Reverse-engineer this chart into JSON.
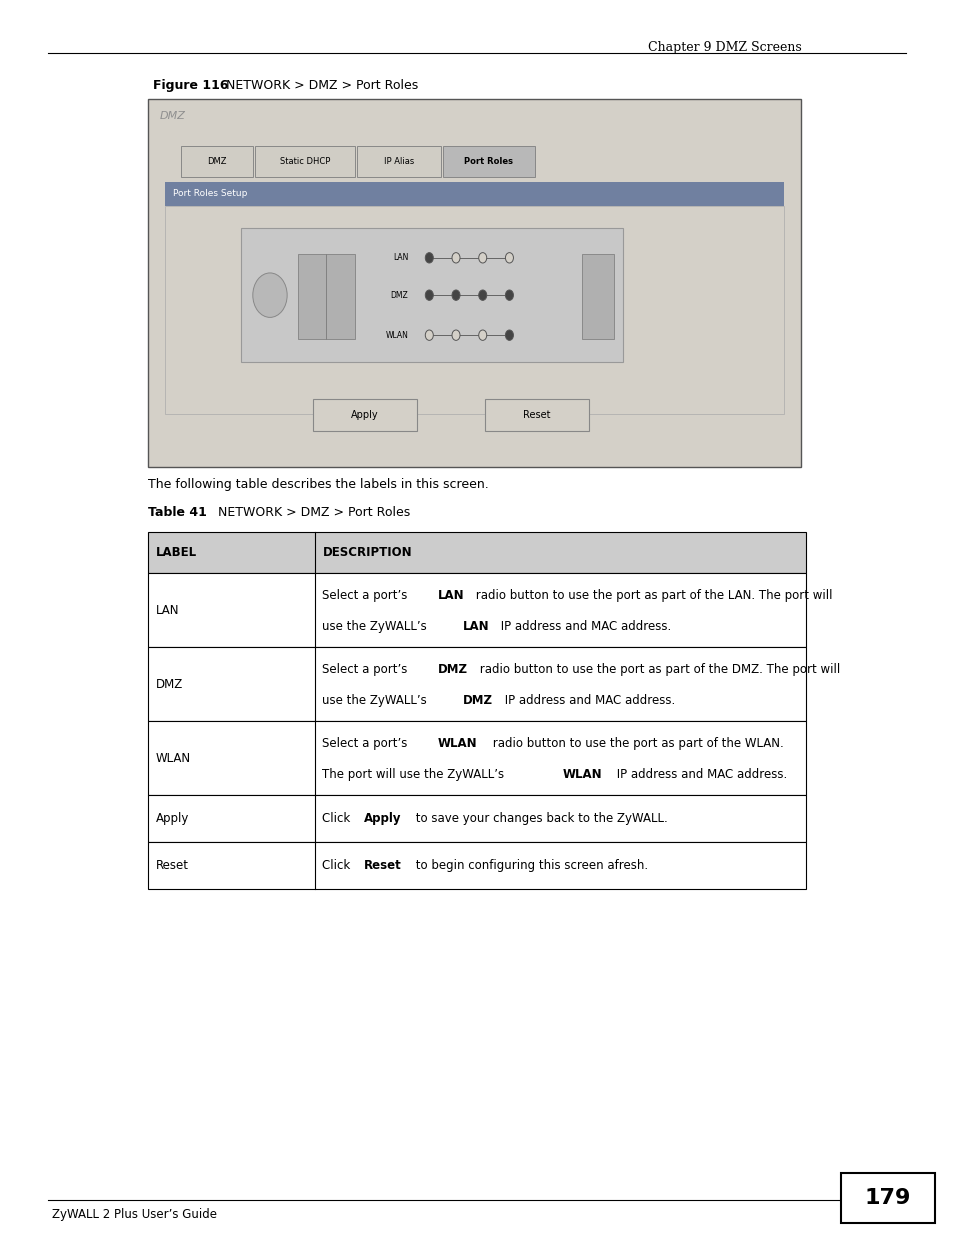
{
  "bg_color": "#ffffff",
  "page_width": 9.54,
  "page_height": 12.35,
  "header_text": "Chapter 9 DMZ Screens",
  "figure_label": "Figure 116",
  "figure_title": "NETWORK > DMZ > Port Roles",
  "intro_text": "The following table describes the labels in this screen.",
  "table_label": "Table 41",
  "table_title": "NETWORK > DMZ > Port Roles",
  "table_header": [
    "LABEL",
    "DESCRIPTION"
  ],
  "table_rows": [
    {
      "label": "LAN",
      "line1": "Select a port’s LAN radio button to use the port as part of the LAN. The port will",
      "line2": "use the ZyWALL’s LAN IP address and MAC address.",
      "bold_word": "LAN",
      "two_lines": true
    },
    {
      "label": "DMZ",
      "line1": "Select a port’s DMZ radio button to use the port as part of the DMZ. The port will",
      "line2": "use the ZyWALL’s DMZ IP address and MAC address.",
      "bold_word": "DMZ",
      "two_lines": true
    },
    {
      "label": "WLAN",
      "line1": "Select a port’s WLAN radio button to use the port as part of the WLAN.",
      "line2": "The port will use the ZyWALL’s WLAN IP address and MAC address.",
      "bold_word": "WLAN",
      "two_lines": true
    },
    {
      "label": "Apply",
      "line1": "Click Apply to save your changes back to the ZyWALL.",
      "line2": "",
      "bold_word": "Apply",
      "two_lines": false
    },
    {
      "label": "Reset",
      "line1": "Click Reset to begin configuring this screen afresh.",
      "line2": "",
      "bold_word": "Reset",
      "two_lines": false
    }
  ],
  "footer_text": "ZyWALL 2 Plus User’s Guide",
  "page_number": "179",
  "dmz_tabs": [
    "DMZ",
    "Static DHCP",
    "IP Alias",
    "Port Roles"
  ],
  "active_tab": 3,
  "section_title": "Port Roles Setup",
  "lan_radio_filled": [
    true,
    false,
    false,
    false
  ],
  "dmz_radio_filled": [
    true,
    true,
    true,
    true
  ],
  "wlan_radio_filled": [
    false,
    false,
    false,
    true
  ]
}
